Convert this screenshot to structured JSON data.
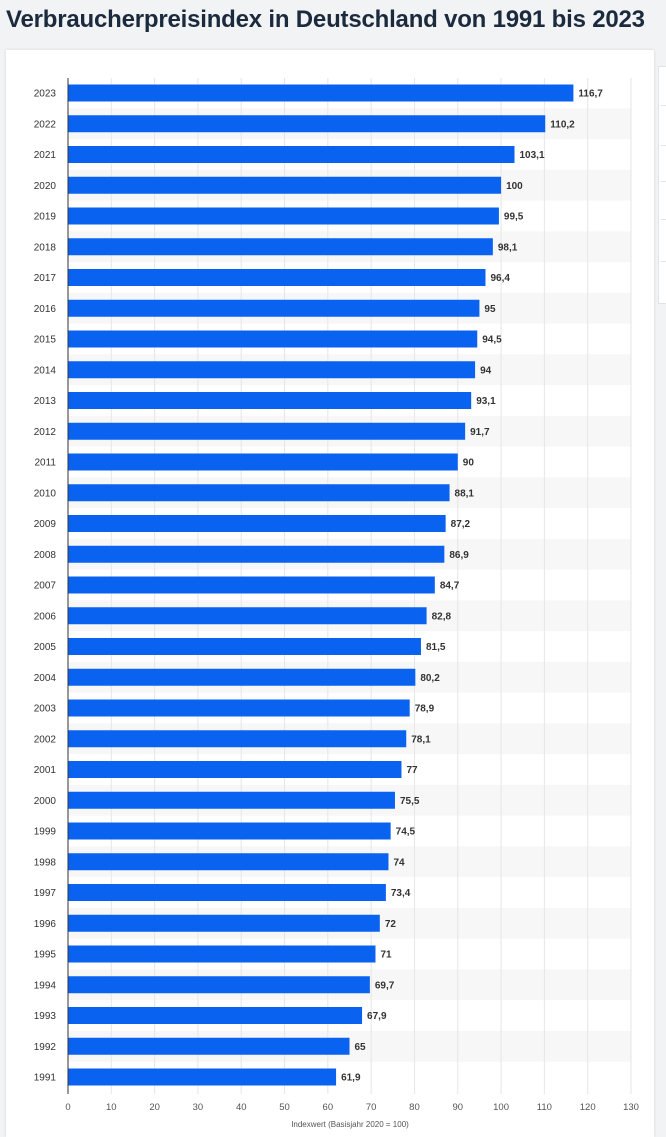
{
  "title": "Verbraucherpreisindex in Deutschland von 1991 bis 2023",
  "colors": {
    "bar": "#0a62f0",
    "axis": "#333333",
    "grid": "#e6e6e6",
    "stripe": "#f7f7f7",
    "label": "#333333"
  },
  "chart_data": {
    "type": "bar",
    "orientation": "horizontal",
    "title": "",
    "xlabel": "Indexwert (Basisjahr 2020 = 100)",
    "ylabel": "",
    "xlim": [
      0,
      130
    ],
    "xticks": [
      0,
      10,
      20,
      30,
      40,
      50,
      60,
      70,
      80,
      90,
      100,
      110,
      120,
      130
    ],
    "grid": true,
    "categories": [
      "2023",
      "2022",
      "2021",
      "2020",
      "2019",
      "2018",
      "2017",
      "2016",
      "2015",
      "2014",
      "2013",
      "2012",
      "2011",
      "2010",
      "2009",
      "2008",
      "2007",
      "2006",
      "2005",
      "2004",
      "2003",
      "2002",
      "2001",
      "2000",
      "1999",
      "1998",
      "1997",
      "1996",
      "1995",
      "1994",
      "1993",
      "1992",
      "1991"
    ],
    "values": [
      116.7,
      110.2,
      103.1,
      100,
      99.5,
      98.1,
      96.4,
      95,
      94.5,
      94,
      93.1,
      91.7,
      90,
      88.1,
      87.2,
      86.9,
      84.7,
      82.8,
      81.5,
      80.2,
      78.9,
      78.1,
      77,
      75.5,
      74.5,
      74,
      73.4,
      72,
      71,
      69.7,
      67.9,
      65,
      61.9
    ],
    "data_labels": [
      "116,7",
      "110,2",
      "103,1",
      "100",
      "99,5",
      "98,1",
      "96,4",
      "95",
      "94,5",
      "94",
      "93,1",
      "91,7",
      "90",
      "88,1",
      "87,2",
      "86,9",
      "84,7",
      "82,8",
      "81,5",
      "80,2",
      "78,9",
      "78,1",
      "77",
      "75,5",
      "74,5",
      "74",
      "73,4",
      "72",
      "71",
      "69,7",
      "67,9",
      "65",
      "61,9"
    ]
  }
}
